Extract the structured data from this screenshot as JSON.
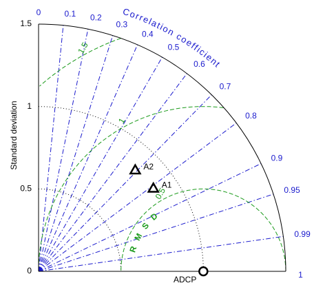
{
  "chart_data": {
    "type": "scatter",
    "title": "",
    "ylabel": "Standard deviation",
    "correlation_label": "Correlation coefficient",
    "rmsd_label": "R M S D",
    "std_ticks": [
      {
        "value": 0,
        "label": "0"
      },
      {
        "value": 0.5,
        "label": "0.5"
      },
      {
        "value": 1,
        "label": "1"
      },
      {
        "value": 1.5,
        "label": "1.5"
      }
    ],
    "std_max": 1.5,
    "correlation_ticks": [
      {
        "value": 0,
        "label": "0"
      },
      {
        "value": 0.1,
        "label": "0.1"
      },
      {
        "value": 0.2,
        "label": "0.2"
      },
      {
        "value": 0.3,
        "label": "0.3"
      },
      {
        "value": 0.4,
        "label": "0.4"
      },
      {
        "value": 0.5,
        "label": "0.5"
      },
      {
        "value": 0.6,
        "label": "0.6"
      },
      {
        "value": 0.7,
        "label": "0.7"
      },
      {
        "value": 0.8,
        "label": "0.8"
      },
      {
        "value": 0.9,
        "label": "0.9"
      },
      {
        "value": 0.95,
        "label": "0.95"
      },
      {
        "value": 0.99,
        "label": "0.99"
      },
      {
        "value": 1,
        "label": "1"
      }
    ],
    "rmsd_contours": [
      {
        "value": 0.5,
        "label": "0.5"
      },
      {
        "value": 1,
        "label": "1"
      },
      {
        "value": 1.5,
        "label": "1.5"
      }
    ],
    "reference": {
      "name": "ADCP",
      "std": 1.0,
      "correlation": 1.0
    },
    "points": [
      {
        "name": "A1",
        "std": 0.86,
        "correlation": 0.81
      },
      {
        "name": "A2",
        "std": 0.85,
        "correlation": 0.69
      }
    ],
    "colors": {
      "correlation": "#1a1acd",
      "rmsd": "#1a9a1a",
      "std_grid": "#000000"
    }
  }
}
